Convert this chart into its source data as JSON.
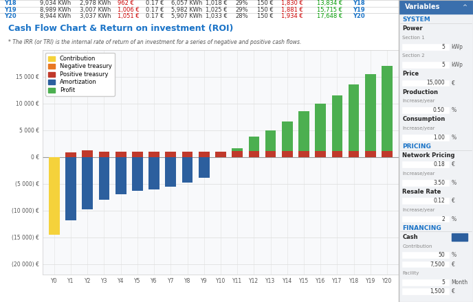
{
  "title": "Cash Flow Chart & Return on investment (ROI)",
  "title_color": "#1a73c7",
  "subtitle": "* The IRR (or TRI) is the internal rate of return of an investment for a series of negative and positive cash flows.",
  "table_rows": [
    [
      "Y18",
      "9,034 KWh",
      "2,978 KWh",
      "962 €",
      "0.17 €",
      "6,057 KWh",
      "1,018 €",
      "29%",
      "150 €",
      "1,830 €",
      "13,834 €",
      "Y18"
    ],
    [
      "Y19",
      "8,989 KWh",
      "3,007 KWh",
      "1,006 €",
      "0.17 €",
      "5,982 KWh",
      "1,025 €",
      "29%",
      "150 €",
      "1,881 €",
      "15,715 €",
      "Y19"
    ],
    [
      "Y20",
      "8,944 KWh",
      "3,037 KWh",
      "1,051 €",
      "0.17 €",
      "5,907 KWh",
      "1,033 €",
      "28%",
      "150 €",
      "1,934 €",
      "17,648 €",
      "Y20"
    ]
  ],
  "x_labels": [
    "Y0",
    "Y1",
    "Y2",
    "Y3",
    "Y4",
    "Y5",
    "Y6",
    "Y7",
    "Y8",
    "Y9",
    "Y10",
    "Y11",
    "Y12",
    "Y13",
    "Y14",
    "Y15",
    "Y16",
    "Y17",
    "Y18",
    "Y19",
    "Y20"
  ],
  "contribution": [
    -14500,
    0,
    0,
    0,
    0,
    0,
    0,
    0,
    0,
    0,
    0,
    0,
    0,
    0,
    0,
    0,
    0,
    0,
    0,
    0,
    0
  ],
  "positive_treasury": [
    0,
    900,
    1200,
    950,
    1000,
    1050,
    1050,
    1050,
    1050,
    1000,
    1050,
    1100,
    1100,
    1100,
    1100,
    1100,
    1100,
    1100,
    1100,
    1100,
    1100
  ],
  "amortization": [
    0,
    -11800,
    -9800,
    -8000,
    -7000,
    -6300,
    -6000,
    -5600,
    -4800,
    -3900,
    0,
    0,
    0,
    0,
    0,
    0,
    0,
    0,
    0,
    0,
    0
  ],
  "profit": [
    0,
    0,
    0,
    0,
    0,
    0,
    0,
    0,
    0,
    0,
    100,
    1600,
    3800,
    5000,
    6600,
    8500,
    10000,
    11500,
    13500,
    15500,
    17000
  ],
  "colors": {
    "contribution": "#F5D23B",
    "negative_treasury": "#E87722",
    "positive_treasury": "#C0392B",
    "amortization": "#2C5F9E",
    "profit": "#4CAF50"
  },
  "legend_labels": [
    "Contribution",
    "Negative treasury",
    "Positive treasury",
    "Amortization",
    "Profit"
  ],
  "ylim": [
    -22000,
    20000
  ],
  "yticks": [
    -20000,
    -15000,
    -10000,
    -5000,
    0,
    5000,
    10000,
    15000
  ],
  "ytick_labels": [
    "(20 000) €",
    "(15 000) €",
    "(10 000) €",
    "(5 000) €",
    "0 €",
    "5 000 €",
    "10 000 €",
    "15 000 €"
  ],
  "grid_color": "#e0e0e0",
  "right_panel_title": "Variables",
  "right_panel_bg": "#3a6fad",
  "right_panel_section_color": "#1a73c7",
  "panel_items": [
    {
      "label": "SYSTEM",
      "type": "section"
    },
    {
      "label": "Power",
      "type": "bold"
    },
    {
      "label": "Section 1",
      "type": "sublabel"
    },
    {
      "label": "5",
      "unit": "kWp",
      "type": "input"
    },
    {
      "label": "Section 2",
      "type": "sublabel"
    },
    {
      "label": "5",
      "unit": "kWp",
      "type": "input"
    },
    {
      "label": "Price",
      "type": "bold"
    },
    {
      "label": "15,000",
      "unit": "€",
      "type": "input"
    },
    {
      "label": "Production",
      "type": "bold"
    },
    {
      "label": "Increase/year",
      "type": "sublabel"
    },
    {
      "label": "0.50",
      "unit": "%",
      "type": "input"
    },
    {
      "label": "Consumption",
      "type": "bold"
    },
    {
      "label": "Increase/year",
      "type": "sublabel"
    },
    {
      "label": "1.00",
      "unit": "%",
      "type": "input"
    },
    {
      "label": "PRICING",
      "type": "section"
    },
    {
      "label": "Network Pricing",
      "type": "bold"
    },
    {
      "label": "0.18",
      "unit": "€",
      "type": "input"
    },
    {
      "label": "Increase/year",
      "type": "sublabel"
    },
    {
      "label": "3.50",
      "unit": "%",
      "type": "input"
    },
    {
      "label": "Resale Rate",
      "type": "bold"
    },
    {
      "label": "0.12",
      "unit": "€",
      "type": "input"
    },
    {
      "label": "Increase/year",
      "type": "sublabel"
    },
    {
      "label": "2",
      "unit": "%",
      "type": "input"
    },
    {
      "label": "FINANCING",
      "type": "section"
    },
    {
      "label": "Cash",
      "type": "bold_with_box"
    },
    {
      "label": "Contribution",
      "type": "sublabel"
    },
    {
      "label": "50",
      "unit": "%",
      "type": "input"
    },
    {
      "label": "7,500",
      "unit": "€",
      "type": "input"
    },
    {
      "label": "Facility",
      "type": "sublabel"
    },
    {
      "label": "5",
      "unit": "Month",
      "type": "input"
    },
    {
      "label": "1,500",
      "unit": "€",
      "type": "input"
    }
  ]
}
